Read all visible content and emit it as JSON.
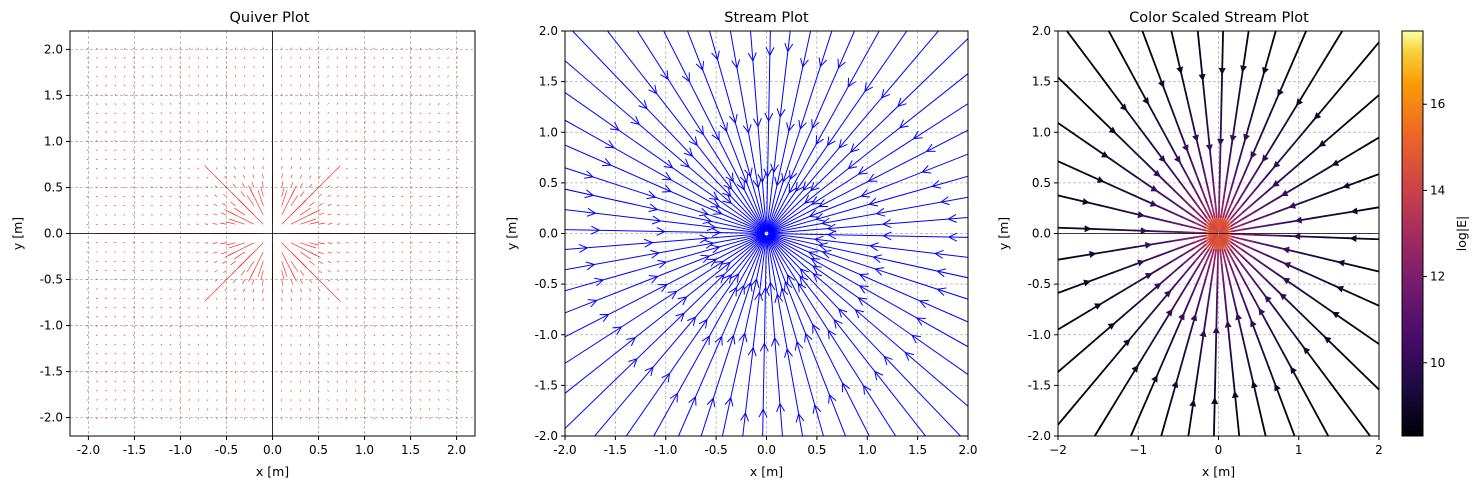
{
  "chart_data": [
    {
      "type": "quiver",
      "title": "Quiver Plot",
      "xlabel": "x [m]",
      "ylabel": "y [m]",
      "xlim": [
        -2.2,
        2.2
      ],
      "ylim": [
        -2.2,
        2.2
      ],
      "xticks": [
        "-2.0",
        "-1.5",
        "-1.0",
        "-0.5",
        "0.0",
        "0.5",
        "1.0",
        "1.5",
        "2.0"
      ],
      "yticks": [
        "-2.0",
        "-1.5",
        "-1.0",
        "-0.5",
        "0.0",
        "0.5",
        "1.0",
        "1.5",
        "2.0"
      ],
      "grid": true,
      "color": "#ff0000",
      "field": "radial electric field of a point charge at origin",
      "grid_range": [
        -2,
        2
      ],
      "grid_points": 41
    },
    {
      "type": "stream",
      "title": "Stream Plot",
      "xlabel": "x [m]",
      "ylabel": "y [m]",
      "xlim": [
        -2,
        2
      ],
      "ylim": [
        -2,
        2
      ],
      "xticks": [
        "-2.0",
        "-1.5",
        "-1.0",
        "-0.5",
        "0.0",
        "0.5",
        "1.0",
        "1.5",
        "2.0"
      ],
      "yticks": [
        "-2.0",
        "-1.5",
        "-1.0",
        "-0.5",
        "0.0",
        "0.5",
        "1.0",
        "1.5",
        "2.0"
      ],
      "grid": true,
      "color": "#0000ff",
      "direction": "inward toward origin"
    },
    {
      "type": "stream",
      "title": "Color Scaled Stream Plot",
      "xlabel": "x [m]",
      "ylabel": "y [m]",
      "xlim": [
        -2,
        2
      ],
      "ylim": [
        -2,
        2
      ],
      "xticks": [
        "−2",
        "−1",
        "0",
        "1",
        "2"
      ],
      "yticks": [
        "-2.0",
        "-1.5",
        "-1.0",
        "-0.5",
        "0.0",
        "0.5",
        "1.0",
        "1.5",
        "2.0"
      ],
      "grid": true,
      "colormap": "inferno",
      "direction": "inward toward origin",
      "colorbar": {
        "label": "log|E|",
        "range": [
          8.3,
          17.7
        ],
        "ticks": [
          "10",
          "12",
          "14",
          "16"
        ],
        "tick_values": [
          10,
          12,
          14,
          16
        ]
      }
    }
  ]
}
